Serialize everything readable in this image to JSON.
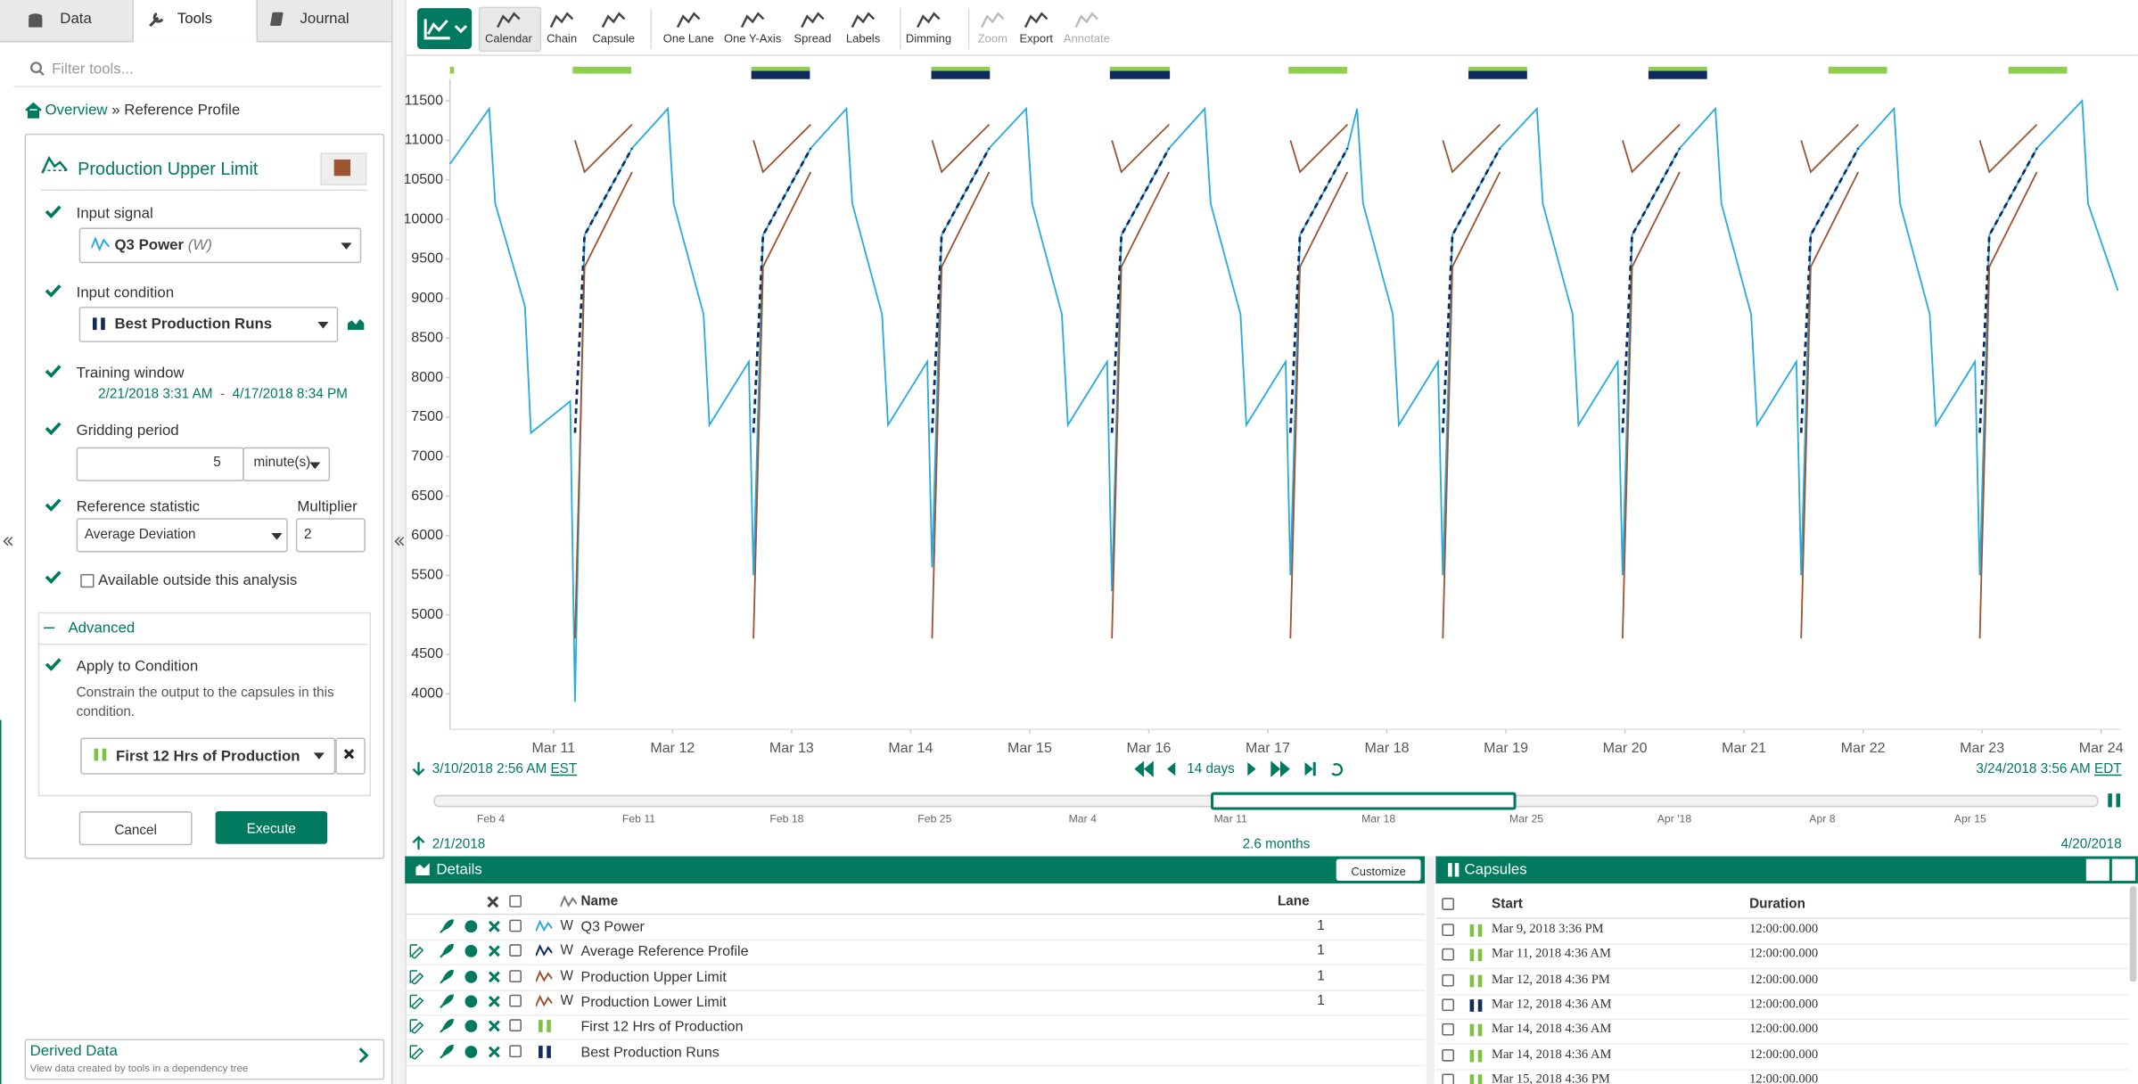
{
  "tabs": [
    "Data",
    "Tools",
    "Journal"
  ],
  "filter_placeholder": "Filter tools...",
  "breadcrumb": {
    "overview": "Overview",
    "separator": "»",
    "current": "Reference Profile"
  },
  "tool": {
    "title": "Production Upper Limit",
    "input_signal": {
      "label": "Input signal",
      "value": "Q3 Power",
      "unit": "(W)"
    },
    "input_condition": {
      "label": "Input condition",
      "value": "Best Production Runs"
    },
    "training_window": {
      "label": "Training window",
      "start": "2/21/2018 3:31 AM",
      "separator": "-",
      "end": "4/17/2018 8:34 PM"
    },
    "gridding_period": {
      "label": "Gridding period",
      "value": 5,
      "unit": "minute(s)"
    },
    "reference_statistic": {
      "label": "Reference statistic",
      "value": "Average Deviation"
    },
    "multiplier": {
      "label": "Multiplier",
      "value": 2
    },
    "available_outside": "Available outside this analysis",
    "advanced": "Advanced",
    "apply": {
      "label": "Apply to Condition",
      "description": "Constrain the output to the capsules in this condition.",
      "condition": "First 12 Hrs of Production"
    },
    "buttons": {
      "cancel": "Cancel",
      "execute": "Execute"
    }
  },
  "derived_data": {
    "title": "Derived Data",
    "subtitle": "View data created by tools in a dependency tree"
  },
  "toolbar": [
    "Calendar",
    "Chain",
    "Capsule",
    "One Lane",
    "One Y-Axis",
    "Spread",
    "Labels",
    "Dimming",
    "Zoom",
    "Export",
    "Annotate"
  ],
  "chart_data": {
    "type": "line",
    "x": [
      10.13,
      10.46,
      10.51,
      10.76,
      10.81,
      11.14,
      11.18,
      11.26,
      11.66,
      11.96,
      12.01,
      12.26,
      12.31,
      12.64,
      12.68,
      12.76,
      13.16,
      13.46,
      13.51,
      13.76,
      13.81,
      14.14,
      14.18,
      14.26,
      14.66,
      14.97,
      15.02,
      15.27,
      15.32,
      15.65,
      15.69,
      15.77,
      16.17,
      16.47,
      16.52,
      16.77,
      16.82,
      17.15,
      17.19,
      17.27,
      17.67,
      17.75,
      17.8,
      18.05,
      18.1,
      18.43,
      18.47,
      18.55,
      18.95,
      19.26,
      19.31,
      19.56,
      19.61,
      19.94,
      19.98,
      20.06,
      20.46,
      20.76,
      20.81,
      21.06,
      21.11,
      21.44,
      21.48,
      21.56,
      21.96,
      22.26,
      22.31,
      22.56,
      22.61,
      22.94,
      22.98,
      23.06,
      23.46,
      23.84,
      23.89,
      24.14
    ],
    "series": [
      {
        "color": "#29abe2",
        "dash": false,
        "values": [
          10700,
          11400,
          10200,
          8900,
          7300,
          7700,
          3900,
          9800,
          10900,
          11400,
          10200,
          8800,
          7400,
          8200,
          5500,
          9800,
          10900,
          11400,
          10200,
          8800,
          7400,
          8200,
          5600,
          9800,
          10900,
          11400,
          10200,
          8800,
          7400,
          8200,
          5300,
          9800,
          10900,
          11400,
          10200,
          8800,
          7400,
          8200,
          5500,
          9800,
          10900,
          11400,
          10200,
          8800,
          7400,
          8200,
          5500,
          9800,
          10900,
          11400,
          10200,
          8800,
          7400,
          8200,
          5500,
          9800,
          10900,
          11400,
          10200,
          8800,
          7400,
          8200,
          5500,
          9800,
          10900,
          11400,
          10200,
          8800,
          7400,
          8200,
          5500,
          9800,
          10900,
          11500,
          10200,
          9100
        ]
      },
      {
        "color": "#0f2a5c",
        "dash": true,
        "values": [
          null,
          null,
          null,
          null,
          null,
          null,
          7300,
          9800,
          10900,
          null,
          null,
          null,
          null,
          null,
          7300,
          9800,
          10900,
          null,
          null,
          null,
          null,
          null,
          7300,
          9800,
          10900,
          null,
          null,
          null,
          null,
          null,
          7300,
          9800,
          10900,
          null,
          null,
          null,
          null,
          null,
          7300,
          9800,
          10900,
          null,
          null,
          null,
          null,
          null,
          7300,
          9800,
          10900,
          null,
          null,
          null,
          null,
          null,
          7300,
          9800,
          10900,
          null,
          null,
          null,
          null,
          null,
          7300,
          9800,
          10900,
          null,
          null,
          null,
          null,
          null,
          7300,
          9800,
          10900,
          null,
          null,
          null
        ]
      },
      {
        "color": "#9c5530",
        "dash": false,
        "values": [
          null,
          null,
          null,
          null,
          null,
          null,
          11000,
          10600,
          11200,
          null,
          null,
          null,
          null,
          null,
          11000,
          10600,
          11200,
          null,
          null,
          null,
          null,
          null,
          11000,
          10600,
          11200,
          null,
          null,
          null,
          null,
          null,
          11000,
          10600,
          11200,
          null,
          null,
          null,
          null,
          null,
          11000,
          10600,
          11200,
          null,
          null,
          null,
          null,
          null,
          11000,
          10600,
          11200,
          null,
          null,
          null,
          null,
          null,
          11000,
          10600,
          11200,
          null,
          null,
          null,
          null,
          null,
          11000,
          10600,
          11200,
          null,
          null,
          null,
          null,
          null,
          11000,
          10600,
          11200,
          null,
          null,
          null
        ]
      },
      {
        "color": "#9c5530",
        "dash": false,
        "values": [
          null,
          null,
          null,
          null,
          null,
          null,
          4700,
          9400,
          10600,
          null,
          null,
          null,
          null,
          null,
          4700,
          9400,
          10600,
          null,
          null,
          null,
          null,
          null,
          4700,
          9400,
          10600,
          null,
          null,
          null,
          null,
          null,
          4700,
          9400,
          10600,
          null,
          null,
          null,
          null,
          null,
          4700,
          9400,
          10600,
          null,
          null,
          null,
          null,
          null,
          4700,
          9400,
          10600,
          null,
          null,
          null,
          null,
          null,
          4700,
          9400,
          10600,
          null,
          null,
          null,
          null,
          null,
          4700,
          9400,
          10600,
          null,
          null,
          null,
          null,
          null,
          4700,
          9400,
          10600,
          null,
          null,
          null
        ]
      }
    ],
    "xlim": [
      10.13,
      24.16
    ],
    "xticks": [
      {
        "value": 11,
        "label": "Mar 11"
      },
      {
        "value": 12,
        "label": "Mar 12"
      },
      {
        "value": 13,
        "label": "Mar 13"
      },
      {
        "value": 14,
        "label": "Mar 14"
      },
      {
        "value": 15,
        "label": "Mar 15"
      },
      {
        "value": 16,
        "label": "Mar 16"
      },
      {
        "value": 17,
        "label": "Mar 17"
      },
      {
        "value": 18,
        "label": "Mar 18"
      },
      {
        "value": 19,
        "label": "Mar 19"
      },
      {
        "value": 20,
        "label": "Mar 20"
      },
      {
        "value": 21,
        "label": "Mar 21"
      },
      {
        "value": 22,
        "label": "Mar 22"
      },
      {
        "value": 23,
        "label": "Mar 23"
      },
      {
        "value": 24,
        "label": "Mar 24"
      }
    ],
    "ylim": [
      3550,
      11740
    ],
    "yticks": [
      4000,
      4500,
      5000,
      5500,
      6000,
      6500,
      7000,
      7500,
      8000,
      8500,
      9000,
      9500,
      10000,
      10500,
      11000,
      11500
    ],
    "grid": false
  },
  "time_bar": {
    "start": "3/10/2018 2:56 AM",
    "start_zone": "EST",
    "duration": "14 days",
    "end": "3/24/2018 3:56 AM",
    "end_zone": "EDT"
  },
  "overview": {
    "labels": [
      "Feb 4",
      "Feb 11",
      "Feb 18",
      "Feb 25",
      "Mar 4",
      "Mar 11",
      "Mar 18",
      "Mar 25",
      "Apr '18",
      "Apr 8",
      "Apr 15"
    ],
    "start": "2/1/2018",
    "range": "2.6 months",
    "end": "4/20/2018"
  },
  "details": {
    "title": "Details",
    "customize": "Customize",
    "columns": {
      "name": "Name",
      "lane": "Lane"
    },
    "rows": [
      {
        "unit": "W",
        "name": "Q3 Power",
        "lane": 1
      },
      {
        "unit": "W",
        "name": "Average Reference Profile",
        "lane": 1
      },
      {
        "unit": "W",
        "name": "Production Upper Limit",
        "lane": 1
      },
      {
        "unit": "W",
        "name": "Production Lower Limit",
        "lane": 1
      },
      {
        "name": "First 12 Hrs of Production"
      },
      {
        "name": "Best Production Runs"
      }
    ]
  },
  "capsules": {
    "title": "Capsules",
    "columns": {
      "start": "Start",
      "duration": "Duration"
    },
    "rows": [
      {
        "start": "Mar 9, 2018 3:36 PM",
        "duration": "12:00:00.000"
      },
      {
        "start": "Mar 11, 2018 4:36 AM",
        "duration": "12:00:00.000"
      },
      {
        "start": "Mar 12, 2018 4:36 PM",
        "duration": "12:00:00.000"
      },
      {
        "start": "Mar 12, 2018 4:36 AM",
        "duration": "12:00:00.000"
      },
      {
        "start": "Mar 14, 2018 4:36 AM",
        "duration": "12:00:00.000"
      },
      {
        "start": "Mar 14, 2018 4:36 AM",
        "duration": "12:00:00.000"
      },
      {
        "start": "Mar 15, 2018 4:36 PM",
        "duration": "12:00:00.000"
      }
    ]
  }
}
